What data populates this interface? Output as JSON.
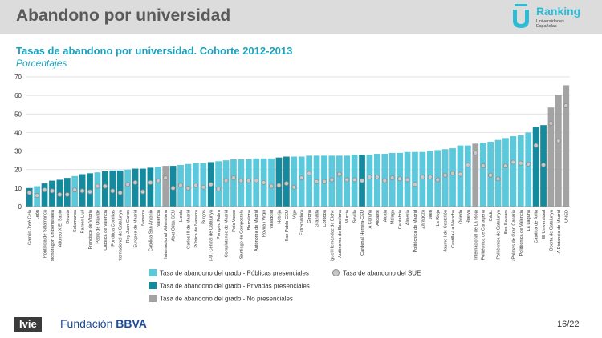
{
  "header": {
    "title": "Abandono por universidad",
    "logo_word": "Ranking",
    "logo_sub": "Universidades Españolas"
  },
  "footer": {
    "ivie": "Ivie",
    "fundacion": "Fundación",
    "bbva": "BBVA",
    "page": "16/22"
  },
  "colors": {
    "publicas": "#5bc8dc",
    "privadas": "#138a9d",
    "no_presenciales": "#a3a3a3",
    "sue_dot": "#c8c8c8",
    "sue_edge": "#888888",
    "grid": "#d9d9d9",
    "title": "#1aa3c1"
  },
  "chart_data": {
    "type": "bar",
    "title": "Tasas de abandono por universidad. Cohorte 2012-2013",
    "subtitle": "Porcentajes",
    "xlabel": "",
    "ylabel": "",
    "ylim": [
      0,
      70
    ],
    "yticks": [
      0,
      10,
      20,
      30,
      40,
      50,
      60,
      70
    ],
    "grid": true,
    "legend_position": "bottom",
    "legend": [
      {
        "key": "P",
        "label": "Tasa de abandono del grado - Públicas presenciales",
        "kind": "bar"
      },
      {
        "key": "V",
        "label": "Tasa de abandono del grado - Privadas presenciales",
        "kind": "bar"
      },
      {
        "key": "N",
        "label": "Tasa de abandono del grado - No presenciales",
        "kind": "bar"
      },
      {
        "key": "S",
        "label": "Tasa de abandono del SUE",
        "kind": "dot"
      }
    ],
    "categories": [
      "Camilo José Cela",
      "León",
      "Pontificia de Salamanca",
      "Mondragón Unibertsitatea",
      "Alfonso X El Sabio",
      "Deusto",
      "Salamanca",
      "Ramon Llull",
      "Francisco de Vitoria",
      "Pablo de Olavide",
      "Católica de Valencia",
      "Pontificia Comillas",
      "Internacional de Catalunya",
      "Rey Juan Carlos",
      "Europea de Madrid",
      "Navarra",
      "Católica San Antonio",
      "Valencia",
      "Internacional Valenciana",
      "Abat Oliba CEU",
      "Lleida",
      "Carlos III de Madrid",
      "Pública de Navarra",
      "Burgos",
      "Vic-U. Central de Catalunya",
      "Pompeu Fabra",
      "Complutense de Madrid",
      "País Vasco",
      "Santiago de Compostela",
      "Barcelona",
      "Autónoma de Madrid",
      "Rovira i Virgili",
      "Valladolid",
      "Nebrija",
      "San Pablo-CEU",
      "Vigo",
      "Extremadura",
      "Girona",
      "Granada",
      "Córdoba",
      "Miguel Hernández de Elche",
      "Autònoma de Barcelona",
      "Murcia",
      "Sevilla",
      "Cardenal Herrera-CEU",
      "A Coruña",
      "Alicante",
      "Alcalá",
      "Málaga",
      "Cantabria",
      "Almería",
      "Politécnica de Madrid",
      "Zaragoza",
      "Jaén",
      "La Rioja",
      "Jaume I de Castellón",
      "Castilla-La Mancha",
      "Oviedo",
      "Huelva",
      "Internacional de La Rioja",
      "Politécnica de Cartagena",
      "Cádiz",
      "Politècnica de Catalunya",
      "Illes Balears",
      "Las Palmas de Gran Canaria",
      "Politècnica de València",
      "La Laguna",
      "Católica de Ávila",
      "IE Universidad",
      "Oberta de Catalunya",
      "A Distancia de Madrid",
      "UNED"
    ],
    "bar_type": [
      "V",
      "P",
      "V",
      "V",
      "V",
      "V",
      "P",
      "V",
      "V",
      "P",
      "V",
      "V",
      "V",
      "P",
      "V",
      "V",
      "V",
      "P",
      "N",
      "V",
      "P",
      "P",
      "P",
      "P",
      "V",
      "P",
      "P",
      "P",
      "P",
      "P",
      "P",
      "P",
      "P",
      "V",
      "V",
      "P",
      "P",
      "P",
      "P",
      "P",
      "P",
      "P",
      "P",
      "P",
      "V",
      "P",
      "P",
      "P",
      "P",
      "P",
      "P",
      "P",
      "P",
      "P",
      "P",
      "P",
      "P",
      "P",
      "P",
      "N",
      "P",
      "P",
      "P",
      "P",
      "P",
      "P",
      "P",
      "V",
      "V",
      "N",
      "N",
      "N"
    ],
    "values": [
      10,
      11,
      12.5,
      14,
      14.5,
      15.5,
      16.5,
      17.5,
      18,
      18.5,
      19,
      19.5,
      19.5,
      20,
      20.5,
      20.5,
      21,
      21.5,
      22,
      22,
      22.5,
      23,
      23.5,
      23.5,
      24,
      24.5,
      25,
      25.5,
      25.5,
      25.5,
      26,
      26,
      26,
      26.5,
      27,
      27,
      27,
      27.5,
      27.5,
      27.5,
      27.5,
      27.5,
      27.5,
      28,
      28,
      28,
      28.5,
      28.5,
      29,
      29,
      29.5,
      29.5,
      29.5,
      30,
      30.5,
      31,
      31.5,
      33,
      33,
      34,
      34.5,
      35,
      36,
      37,
      38,
      38.5,
      40,
      43,
      44,
      53.5,
      60.5,
      65.5
    ],
    "sue_dots": [
      7.5,
      6,
      9,
      8.5,
      6.5,
      6.5,
      9,
      8.5,
      8,
      11,
      11,
      8.5,
      7.5,
      12,
      13,
      8,
      13,
      14,
      15.5,
      10,
      11.5,
      10,
      11.5,
      10.5,
      12,
      9.5,
      14,
      15.5,
      14,
      14,
      14,
      13,
      11,
      11.5,
      12.5,
      10.5,
      15.5,
      18,
      13.5,
      13.5,
      14.5,
      17.5,
      14.5,
      14.5,
      14,
      16,
      16,
      14,
      15.5,
      15,
      14.5,
      12,
      16,
      16,
      14.5,
      17,
      18,
      17.5,
      22.5,
      29,
      22,
      17,
      15,
      22,
      24,
      23.5,
      23,
      33,
      22.5,
      45,
      35.5,
      54.5
    ]
  }
}
